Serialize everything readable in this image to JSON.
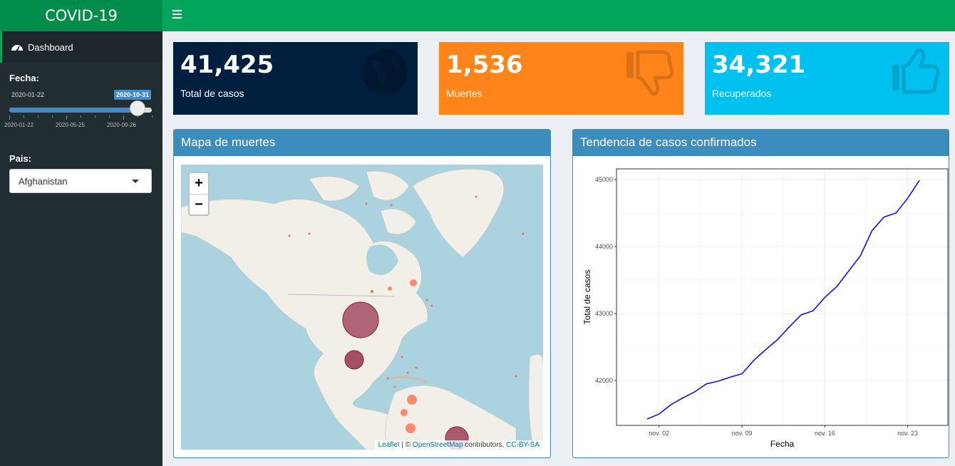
{
  "app": {
    "title": "COVID-19"
  },
  "sidebar": {
    "menu": [
      {
        "label": "Dashboard",
        "icon": "dashboard-icon"
      }
    ],
    "date_filter": {
      "label": "Fecha:",
      "min": "2020-01-22",
      "selected": "2020-10-31",
      "ticks": [
        "2020-01-22",
        "2020-05-25",
        "2020-09-26"
      ],
      "position_fraction": 0.9
    },
    "country_filter": {
      "label": "Pais:",
      "selected": "Afghanistan"
    }
  },
  "value_boxes": [
    {
      "value": "41,425",
      "subtitle": "Total de casos",
      "color": "#001f3f",
      "icon": "globe-icon"
    },
    {
      "value": "1,536",
      "subtitle": "Muertes",
      "color": "#ff851b",
      "icon": "thumbs-down-icon"
    },
    {
      "value": "34,321",
      "subtitle": "Recuperados",
      "color": "#00c0ef",
      "icon": "thumbs-up-icon"
    }
  ],
  "map_box": {
    "title": "Mapa de muertes",
    "zoom_in": "+",
    "zoom_out": "−",
    "attribution": {
      "leaflet": "Leaflet",
      "sep": " | © ",
      "osm": "OpenStreetMap",
      "contrib": " contributors, ",
      "license": "CC-BY-SA"
    }
  },
  "trend_box": {
    "title": "Tendencia de casos confirmados"
  },
  "chart_data": {
    "type": "line",
    "xlabel": "Fecha",
    "ylabel": "Total de casos",
    "x_ticks": [
      "nov. 02",
      "nov. 09",
      "nov. 16",
      "nov. 23"
    ],
    "y_ticks": [
      42000,
      43000,
      44000,
      45000
    ],
    "xlim": [
      -2.6,
      25.4
    ],
    "ylim": [
      41330,
      45160
    ],
    "series": [
      {
        "color": "#0000ff",
        "x": [
          0,
          1,
          2,
          3,
          4,
          5,
          6,
          7,
          8,
          9,
          10,
          11,
          12,
          13,
          14,
          15,
          16,
          17,
          18,
          19,
          20,
          21,
          22
        ],
        "y": [
          41425,
          41500,
          41640,
          41740,
          41830,
          41950,
          41990,
          42050,
          42100,
          42300,
          42460,
          42610,
          42800,
          42980,
          43040,
          43240,
          43400,
          43630,
          43860,
          44240,
          44440,
          44500,
          44720
        ]
      }
    ],
    "extra_points": {
      "x": [
        23
      ],
      "y": [
        44990
      ]
    },
    "grid": true
  }
}
